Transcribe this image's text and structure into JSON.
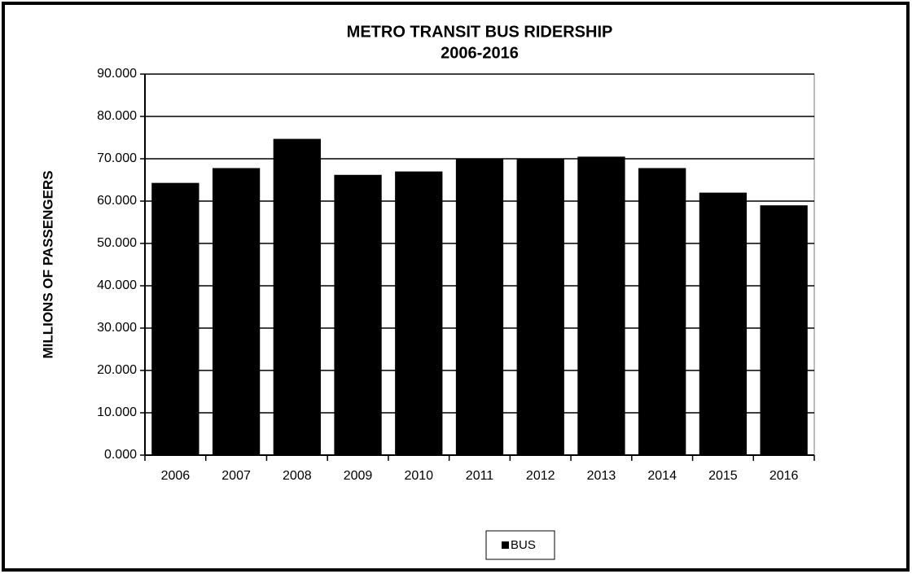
{
  "chart_data": {
    "type": "bar",
    "title": "METRO TRANSIT BUS RIDERSHIP",
    "subtitle": "2006-2016",
    "y_label": "MILLIONS OF PASSENGERS",
    "categories": [
      "2006",
      "2007",
      "2008",
      "2009",
      "2010",
      "2011",
      "2012",
      "2013",
      "2014",
      "2015",
      "2016"
    ],
    "series": [
      {
        "name": "BUS",
        "color": "#000000",
        "values": [
          64.3,
          67.8,
          74.7,
          66.2,
          67.0,
          69.9,
          69.9,
          70.5,
          67.8,
          62.0,
          59.0
        ]
      }
    ],
    "ylim": [
      0,
      90
    ],
    "yticks": [
      {
        "value": 0,
        "label": "0.000"
      },
      {
        "value": 10,
        "label": "10.000"
      },
      {
        "value": 20,
        "label": "20.000"
      },
      {
        "value": 30,
        "label": "30.000"
      },
      {
        "value": 40,
        "label": "40.000"
      },
      {
        "value": 50,
        "label": "50.000"
      },
      {
        "value": 60,
        "label": "60.000"
      },
      {
        "value": 70,
        "label": "70.000"
      },
      {
        "value": 80,
        "label": "80.000"
      },
      {
        "value": 90,
        "label": "90.000"
      }
    ],
    "grid": true,
    "legend": "bottom"
  }
}
